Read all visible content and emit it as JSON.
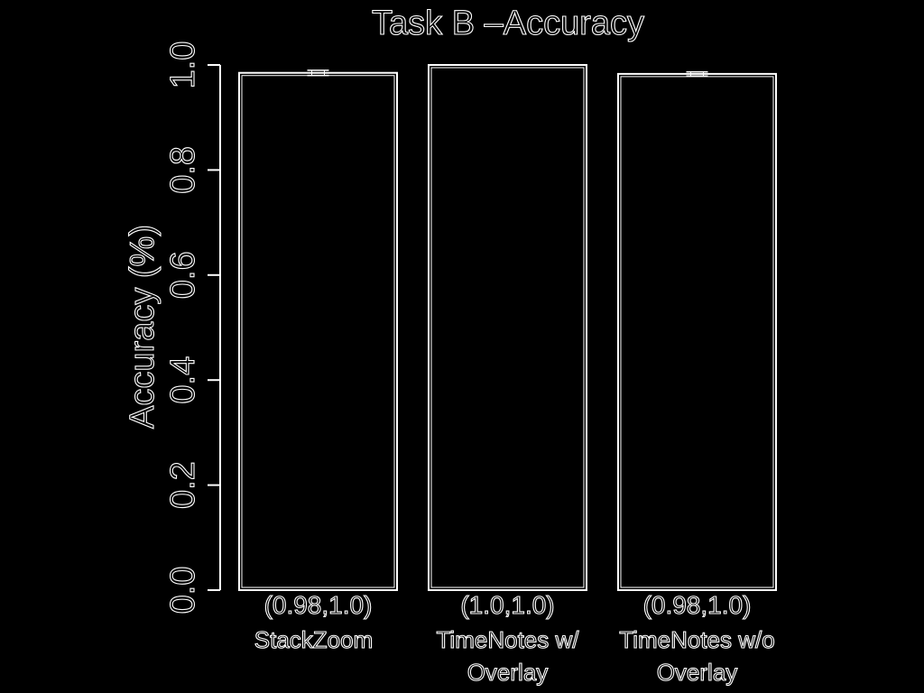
{
  "chart_data": {
    "type": "bar",
    "title": "Task B –Accuracy",
    "xlabel": "",
    "ylabel": "Accuracy (%)",
    "ylim": [
      0,
      1.0
    ],
    "yticks": [
      "0.0",
      "0.2",
      "0.4",
      "0.6",
      "0.8",
      "1.0"
    ],
    "categories": [
      [
        "StackZoom"
      ],
      [
        "TimeNotes w/",
        "Overlay"
      ],
      [
        "TimeNotes w/o",
        "Overlay"
      ]
    ],
    "intervals": [
      "(0.98,1.0)",
      "(1.0,1.0)",
      "(0.98,1.0)"
    ],
    "values": [
      0.985,
      1.0,
      0.983
    ],
    "error_low": [
      0.98,
      1.0,
      0.979
    ],
    "error_high": [
      0.99,
      1.0,
      0.987
    ],
    "grid": false,
    "colors": {
      "background": "#000000",
      "stroke": "#ffffff"
    }
  }
}
